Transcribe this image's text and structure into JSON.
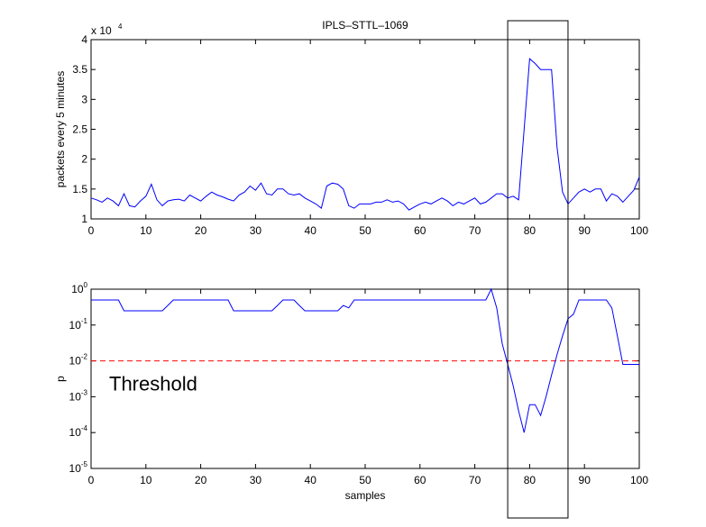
{
  "chart_data": [
    {
      "type": "line",
      "title": "IPLS–STTL–1069",
      "ylabel": "packets every 5 minutes",
      "y_scale_note": {
        "text": "x 10",
        "exponent": "4"
      },
      "x": [
        0,
        1,
        2,
        3,
        4,
        5,
        6,
        7,
        8,
        9,
        10,
        11,
        12,
        13,
        14,
        15,
        16,
        17,
        18,
        19,
        20,
        21,
        22,
        23,
        24,
        25,
        26,
        27,
        28,
        29,
        30,
        31,
        32,
        33,
        34,
        35,
        36,
        37,
        38,
        39,
        40,
        41,
        42,
        43,
        44,
        45,
        46,
        47,
        48,
        49,
        50,
        51,
        52,
        53,
        54,
        55,
        56,
        57,
        58,
        59,
        60,
        61,
        62,
        63,
        64,
        65,
        66,
        67,
        68,
        69,
        70,
        71,
        72,
        73,
        74,
        75,
        76,
        77,
        78,
        79,
        80,
        81,
        82,
        83,
        84,
        85,
        86,
        87,
        88,
        89,
        90,
        91,
        92,
        93,
        94,
        95,
        96,
        97,
        98,
        99,
        100
      ],
      "series": [
        {
          "name": "packets",
          "color": "#0000ff",
          "values": [
            1.35,
            1.32,
            1.28,
            1.35,
            1.3,
            1.22,
            1.42,
            1.22,
            1.2,
            1.3,
            1.38,
            1.58,
            1.32,
            1.22,
            1.3,
            1.32,
            1.33,
            1.3,
            1.4,
            1.35,
            1.3,
            1.38,
            1.45,
            1.4,
            1.37,
            1.33,
            1.3,
            1.4,
            1.45,
            1.55,
            1.48,
            1.6,
            1.42,
            1.4,
            1.5,
            1.5,
            1.42,
            1.4,
            1.42,
            1.35,
            1.3,
            1.25,
            1.18,
            1.55,
            1.6,
            1.58,
            1.5,
            1.22,
            1.18,
            1.25,
            1.25,
            1.25,
            1.28,
            1.28,
            1.32,
            1.28,
            1.3,
            1.25,
            1.15,
            1.2,
            1.25,
            1.28,
            1.25,
            1.3,
            1.35,
            1.3,
            1.22,
            1.28,
            1.25,
            1.3,
            1.35,
            1.25,
            1.28,
            1.35,
            1.42,
            1.42,
            1.35,
            1.38,
            1.32,
            2.5,
            3.68,
            3.6,
            3.5,
            3.5,
            3.5,
            2.2,
            1.45,
            1.25,
            1.35,
            1.45,
            1.5,
            1.45,
            1.5,
            1.5,
            1.3,
            1.42,
            1.38,
            1.28,
            1.38,
            1.48,
            1.7
          ]
        }
      ],
      "xlim": [
        0,
        100
      ],
      "xticks": [
        0,
        10,
        20,
        30,
        40,
        50,
        60,
        70,
        80,
        90,
        100
      ],
      "ylim": [
        1,
        4
      ],
      "yticks": [
        1,
        1.5,
        2,
        2.5,
        3,
        3.5,
        4
      ]
    },
    {
      "type": "line",
      "ylabel": "p",
      "xlabel": "samples",
      "log_y": true,
      "x": [
        0,
        1,
        2,
        3,
        4,
        5,
        6,
        7,
        8,
        9,
        10,
        11,
        12,
        13,
        14,
        15,
        16,
        17,
        18,
        19,
        20,
        21,
        22,
        23,
        24,
        25,
        26,
        27,
        28,
        29,
        30,
        31,
        32,
        33,
        34,
        35,
        36,
        37,
        38,
        39,
        40,
        41,
        42,
        43,
        44,
        45,
        46,
        47,
        48,
        49,
        50,
        51,
        52,
        53,
        54,
        55,
        56,
        57,
        58,
        59,
        60,
        61,
        62,
        63,
        64,
        65,
        66,
        67,
        68,
        69,
        70,
        71,
        72,
        73,
        74,
        75,
        76,
        77,
        78,
        79,
        80,
        81,
        82,
        83,
        84,
        85,
        86,
        87,
        88,
        89,
        90,
        91,
        92,
        93,
        94,
        95,
        96,
        97,
        98,
        99,
        100
      ],
      "series": [
        {
          "name": "p",
          "color": "#0000ff",
          "values": [
            0.5,
            0.5,
            0.5,
            0.5,
            0.5,
            0.5,
            0.25,
            0.25,
            0.25,
            0.25,
            0.25,
            0.25,
            0.25,
            0.25,
            0.35,
            0.5,
            0.5,
            0.5,
            0.5,
            0.5,
            0.5,
            0.5,
            0.5,
            0.5,
            0.5,
            0.5,
            0.25,
            0.25,
            0.25,
            0.25,
            0.25,
            0.25,
            0.25,
            0.25,
            0.35,
            0.5,
            0.5,
            0.5,
            0.35,
            0.25,
            0.25,
            0.25,
            0.25,
            0.25,
            0.25,
            0.25,
            0.35,
            0.3,
            0.5,
            0.5,
            0.5,
            0.5,
            0.5,
            0.5,
            0.5,
            0.5,
            0.5,
            0.5,
            0.5,
            0.5,
            0.5,
            0.5,
            0.5,
            0.5,
            0.5,
            0.5,
            0.5,
            0.5,
            0.5,
            0.5,
            0.5,
            0.5,
            0.5,
            1.0,
            0.3,
            0.03,
            0.008,
            0.002,
            0.0004,
            0.0001,
            0.0006,
            0.0006,
            0.0003,
            0.001,
            0.004,
            0.015,
            0.05,
            0.15,
            0.2,
            0.5,
            0.5,
            0.5,
            0.5,
            0.5,
            0.5,
            0.3,
            0.05,
            0.008,
            0.008,
            0.008,
            0.008
          ]
        }
      ],
      "threshold": {
        "value": 0.01,
        "color": "#ff0000",
        "label": "Threshold"
      },
      "xlim": [
        0,
        100
      ],
      "xticks": [
        0,
        10,
        20,
        30,
        40,
        50,
        60,
        70,
        80,
        90,
        100
      ],
      "ylim": [
        1e-05,
        1
      ],
      "yticks": [
        {
          "value": 1e-05,
          "label": "10^-5"
        },
        {
          "value": 0.0001,
          "label": "10^-4"
        },
        {
          "value": 0.001,
          "label": "10^-3"
        },
        {
          "value": 0.01,
          "label": "10^-2"
        },
        {
          "value": 0.1,
          "label": "10^-1"
        },
        {
          "value": 1,
          "label": "10^0"
        }
      ]
    }
  ],
  "highlight_box": [
    76,
    87
  ]
}
